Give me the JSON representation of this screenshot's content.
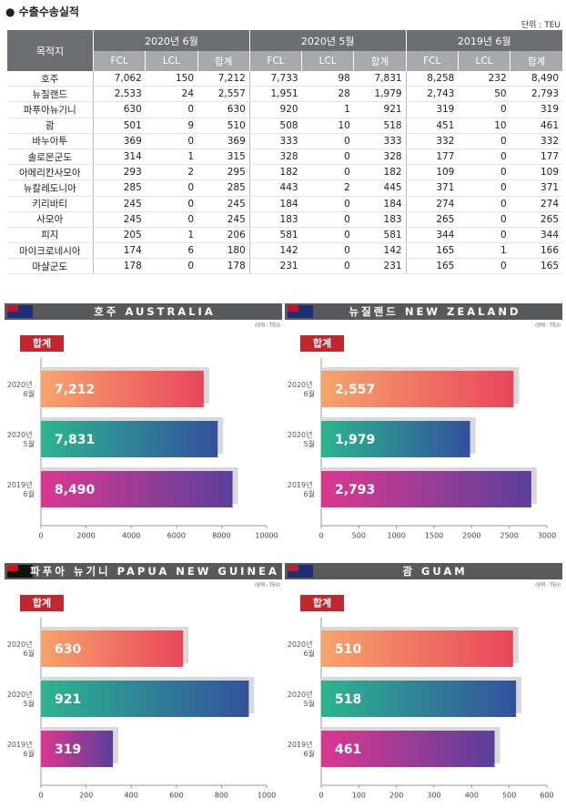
{
  "header": {
    "title": "수출수송실적",
    "unit": "단위 : TEU"
  },
  "table": {
    "columns": [
      "목적지"
    ],
    "groups": [
      "2020년 6월",
      "2020년 5월",
      "2019년 6월"
    ],
    "subcolumns": [
      "FCL",
      "LCL",
      "합계"
    ],
    "rows": [
      [
        "호주",
        "7,062",
        "150",
        "7,212",
        "7,733",
        "98",
        "7,831",
        "8,258",
        "232",
        "8,490"
      ],
      [
        "뉴질랜드",
        "2,533",
        "24",
        "2,557",
        "1,951",
        "28",
        "1,979",
        "2,743",
        "50",
        "2,793"
      ],
      [
        "파푸아뉴기니",
        "630",
        "0",
        "630",
        "920",
        "1",
        "921",
        "319",
        "0",
        "319"
      ],
      [
        "괌",
        "501",
        "9",
        "510",
        "508",
        "10",
        "518",
        "451",
        "10",
        "461"
      ],
      [
        "바누아투",
        "369",
        "0",
        "369",
        "333",
        "0",
        "333",
        "332",
        "0",
        "332"
      ],
      [
        "솔로몬군도",
        "314",
        "1",
        "315",
        "328",
        "0",
        "328",
        "177",
        "0",
        "177"
      ],
      [
        "아메리칸사모아",
        "293",
        "2",
        "295",
        "182",
        "0",
        "182",
        "109",
        "0",
        "109"
      ],
      [
        "뉴칼레도니아",
        "285",
        "0",
        "285",
        "443",
        "2",
        "445",
        "371",
        "0",
        "371"
      ],
      [
        "키리바티",
        "245",
        "0",
        "245",
        "184",
        "0",
        "184",
        "274",
        "0",
        "274"
      ],
      [
        "사모아",
        "245",
        "0",
        "245",
        "183",
        "0",
        "183",
        "265",
        "0",
        "265"
      ],
      [
        "피지",
        "205",
        "1",
        "206",
        "581",
        "0",
        "581",
        "344",
        "0",
        "344"
      ],
      [
        "마이크로네시아",
        "174",
        "6",
        "180",
        "142",
        "0",
        "142",
        "165",
        "1",
        "166"
      ],
      [
        "마샬군도",
        "178",
        "0",
        "178",
        "231",
        "0",
        "231",
        "165",
        "0",
        "165"
      ]
    ]
  },
  "chart_data": [
    {
      "type": "bar",
      "title": "호주 AUSTRALIA",
      "unit": "(단위 : TEU)",
      "label": "합계",
      "categories": [
        "2020년 6월",
        "2020년 5월",
        "2019년 6월"
      ],
      "values": [
        7212,
        7831,
        8490
      ],
      "value_labels": [
        "7,212",
        "7,831",
        "8,490"
      ],
      "gradients": [
        [
          "#f6a46c",
          "#e9465b"
        ],
        [
          "#2cb58f",
          "#33519d"
        ],
        [
          "#dc388f",
          "#5a3f9b"
        ]
      ],
      "xlim": [
        0,
        10000
      ],
      "xticks": [
        0,
        2000,
        4000,
        6000,
        8000,
        10000
      ]
    },
    {
      "type": "bar",
      "title": "뉴질랜드 NEW ZEALAND",
      "unit": "(단위 : TEU)",
      "label": "합계",
      "categories": [
        "2020년 6월",
        "2020년 5월",
        "2019년 6월"
      ],
      "values": [
        2557,
        1979,
        2793
      ],
      "value_labels": [
        "2,557",
        "1,979",
        "2,793"
      ],
      "gradients": [
        [
          "#f6a46c",
          "#e9465b"
        ],
        [
          "#2cb58f",
          "#33519d"
        ],
        [
          "#dc388f",
          "#5a3f9b"
        ]
      ],
      "xlim": [
        0,
        3000
      ],
      "xticks": [
        0,
        500,
        1000,
        1500,
        2000,
        2500,
        3000
      ]
    },
    {
      "type": "bar",
      "title": "파푸아 뉴기니 PAPUA NEW GUINEA",
      "unit": "(단위 : TEU)",
      "label": "합계",
      "categories": [
        "2020년 6월",
        "2020년 5월",
        "2019년 6월"
      ],
      "values": [
        630,
        921,
        319
      ],
      "value_labels": [
        "630",
        "921",
        "319"
      ],
      "gradients": [
        [
          "#f6a46c",
          "#e9465b"
        ],
        [
          "#2cb58f",
          "#33519d"
        ],
        [
          "#dc388f",
          "#5a3f9b"
        ]
      ],
      "xlim": [
        0,
        1000
      ],
      "xticks": [
        0,
        200,
        400,
        600,
        800,
        1000
      ]
    },
    {
      "type": "bar",
      "title": "괌 GUAM",
      "unit": "(단위 : TEU)",
      "label": "합계",
      "categories": [
        "2020년 6월",
        "2020년 5월",
        "2019년 6월"
      ],
      "values": [
        510,
        518,
        461
      ],
      "value_labels": [
        "510",
        "518",
        "461"
      ],
      "gradients": [
        [
          "#f6a46c",
          "#e9465b"
        ],
        [
          "#2cb58f",
          "#33519d"
        ],
        [
          "#dc388f",
          "#5a3f9b"
        ]
      ],
      "xlim": [
        0,
        600
      ],
      "xticks": [
        0,
        100,
        200,
        300,
        400,
        500,
        600
      ]
    }
  ]
}
